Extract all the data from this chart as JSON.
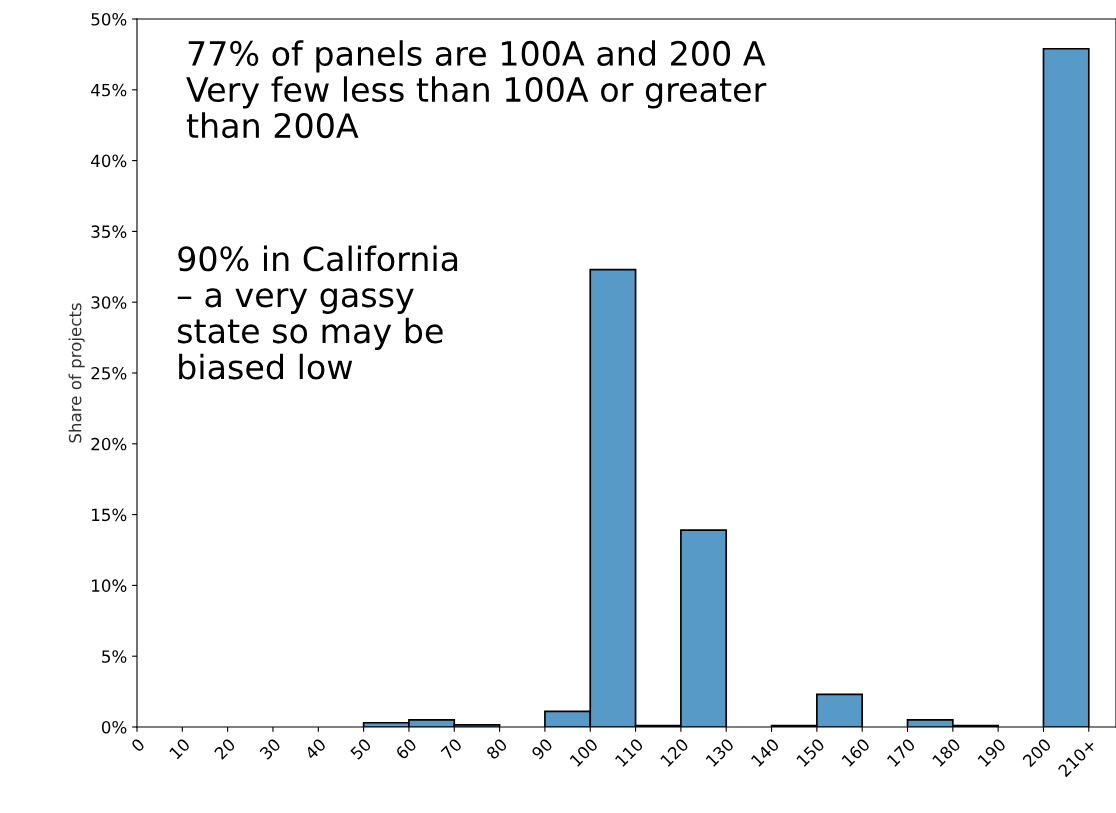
{
  "chart_data": {
    "type": "histogram",
    "ylabel": "Share of projects",
    "bins": [
      0,
      10,
      20,
      30,
      40,
      50,
      60,
      70,
      80,
      90,
      100,
      110,
      120,
      130,
      140,
      150,
      160,
      170,
      180,
      190,
      200,
      210
    ],
    "values": [
      0,
      0,
      0,
      0,
      0,
      0.3,
      0.5,
      0.15,
      0,
      1.1,
      32.3,
      0.1,
      13.9,
      0,
      0.1,
      2.3,
      0,
      0.5,
      0.1,
      0,
      47.9
    ],
    "color": "#5799c7",
    "xlim": [
      0,
      216
    ],
    "ylim": [
      0,
      50
    ],
    "xticks": [
      0,
      10,
      20,
      30,
      40,
      50,
      60,
      70,
      80,
      90,
      100,
      110,
      120,
      130,
      140,
      150,
      160,
      170,
      180,
      190,
      200,
      {
        "value": 210,
        "label": "210+"
      }
    ],
    "yticks": [
      {
        "value": 0,
        "label": "0%"
      },
      {
        "value": 5,
        "label": "5%"
      },
      {
        "value": 10,
        "label": "10%"
      },
      {
        "value": 15,
        "label": "15%"
      },
      {
        "value": 20,
        "label": "20%"
      },
      {
        "value": 25,
        "label": "25%"
      },
      {
        "value": 30,
        "label": "30%"
      },
      {
        "value": 35,
        "label": "35%"
      },
      {
        "value": 40,
        "label": "40%"
      },
      {
        "value": 45,
        "label": "45%"
      },
      {
        "value": 50,
        "label": "50%"
      }
    ],
    "annotations": [
      "77% of panels are 100A and 200 A\nVery few less than 100A or greater\nthan 200A",
      "90% in California\n– a very gassy\nstate so may be\nbiased low"
    ],
    "grid": false,
    "legend": false
  }
}
